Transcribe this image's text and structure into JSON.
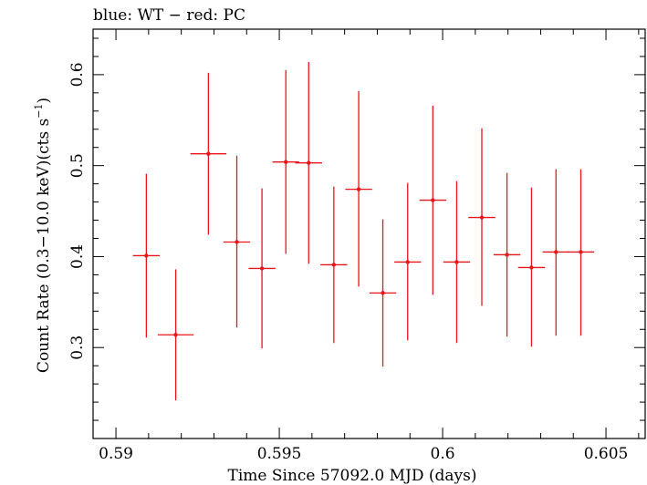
{
  "chart_data": {
    "type": "scatter",
    "title": "blue: WT − red: PC",
    "xlabel": "Time Since 57092.0 MJD (days)",
    "ylabel_main": "Count Rate (0.3−10.0 keV)(cts s",
    "ylabel_sup": "−1",
    "ylabel_end": ")",
    "xlim": [
      0.5893,
      0.6062
    ],
    "ylim": [
      0.2,
      0.65
    ],
    "x_ticks": [
      0.59,
      0.595,
      0.6,
      0.605
    ],
    "x_tick_labels": [
      "0.59",
      "0.595",
      "0.6",
      "0.605"
    ],
    "y_ticks": [
      0.3,
      0.4,
      0.5,
      0.6
    ],
    "y_tick_labels": [
      "0.3",
      "0.4",
      "0.5",
      "0.6"
    ],
    "series": [
      {
        "color": "#e8161b",
        "points": [
          {
            "x": 0.59093,
            "xerr": 0.00041,
            "y": 0.401,
            "ylo": 0.311,
            "yhi": 0.491
          },
          {
            "x": 0.59183,
            "xerr": 0.00055,
            "y": 0.314,
            "ylo": 0.242,
            "yhi": 0.386
          },
          {
            "x": 0.59283,
            "xerr": 0.00055,
            "y": 0.513,
            "ylo": 0.424,
            "yhi": 0.602
          },
          {
            "x": 0.5937,
            "xerr": 0.00041,
            "y": 0.416,
            "ylo": 0.322,
            "yhi": 0.511
          },
          {
            "x": 0.59447,
            "xerr": 0.00041,
            "y": 0.387,
            "ylo": 0.299,
            "yhi": 0.475
          },
          {
            "x": 0.5952,
            "xerr": 0.00041,
            "y": 0.504,
            "ylo": 0.403,
            "yhi": 0.605
          },
          {
            "x": 0.5959,
            "xerr": 0.00041,
            "y": 0.503,
            "ylo": 0.392,
            "yhi": 0.614
          },
          {
            "x": 0.59667,
            "xerr": 0.00041,
            "y": 0.391,
            "ylo": 0.305,
            "yhi": 0.477
          },
          {
            "x": 0.59743,
            "xerr": 0.00041,
            "y": 0.474,
            "ylo": 0.367,
            "yhi": 0.582
          },
          {
            "x": 0.59817,
            "xerr": 0.00041,
            "y": 0.36,
            "ylo": 0.279,
            "yhi": 0.441
          },
          {
            "x": 0.59893,
            "xerr": 0.00041,
            "y": 0.394,
            "ylo": 0.308,
            "yhi": 0.481
          },
          {
            "x": 0.5997,
            "xerr": 0.00041,
            "y": 0.462,
            "ylo": 0.358,
            "yhi": 0.566
          },
          {
            "x": 0.60043,
            "xerr": 0.00041,
            "y": 0.394,
            "ylo": 0.305,
            "yhi": 0.483
          },
          {
            "x": 0.6012,
            "xerr": 0.00041,
            "y": 0.443,
            "ylo": 0.346,
            "yhi": 0.541
          },
          {
            "x": 0.60197,
            "xerr": 0.00041,
            "y": 0.402,
            "ylo": 0.312,
            "yhi": 0.492
          },
          {
            "x": 0.60272,
            "xerr": 0.00041,
            "y": 0.388,
            "ylo": 0.301,
            "yhi": 0.476
          },
          {
            "x": 0.60347,
            "xerr": 0.00041,
            "y": 0.405,
            "ylo": 0.313,
            "yhi": 0.496
          },
          {
            "x": 0.60423,
            "xerr": 0.00041,
            "y": 0.405,
            "ylo": 0.313,
            "yhi": 0.496
          }
        ]
      }
    ],
    "grid": false,
    "ticks_on_all_sides": true
  }
}
